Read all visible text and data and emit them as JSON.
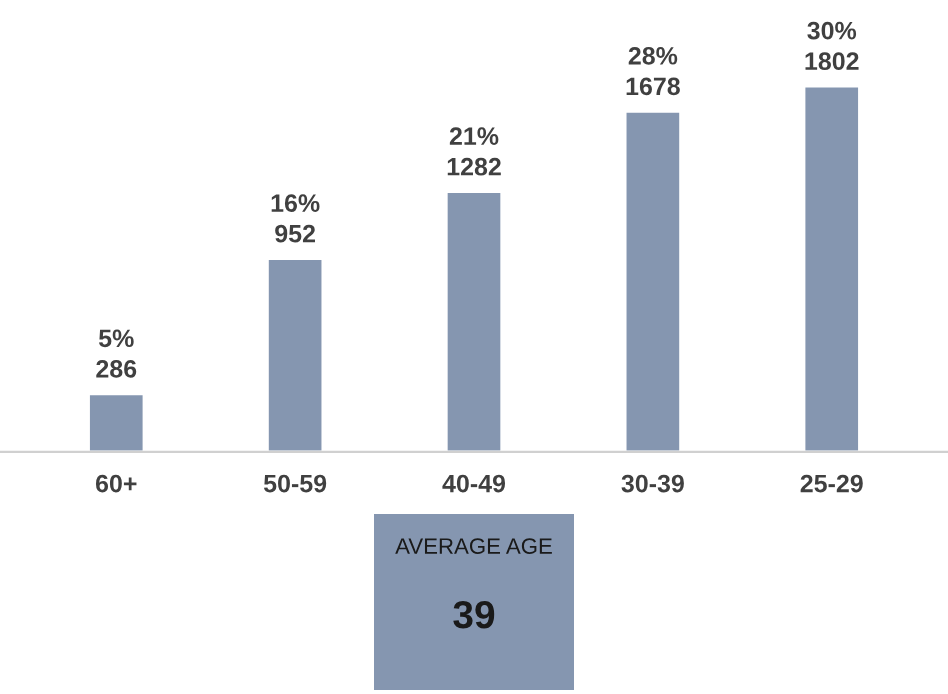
{
  "chart_data": {
    "type": "bar",
    "categories": [
      "60+",
      "50-59",
      "40-49",
      "30-39",
      "25-29"
    ],
    "values": [
      286,
      952,
      1282,
      1678,
      1802
    ],
    "value_labels": [
      "5%\n286",
      "16%\n952",
      "21%\n1282",
      "28%\n1678",
      "30%\n1802"
    ],
    "color": "#8596b0",
    "grid": false,
    "annotations": [
      "AVERAGE AGE",
      "39"
    ]
  }
}
